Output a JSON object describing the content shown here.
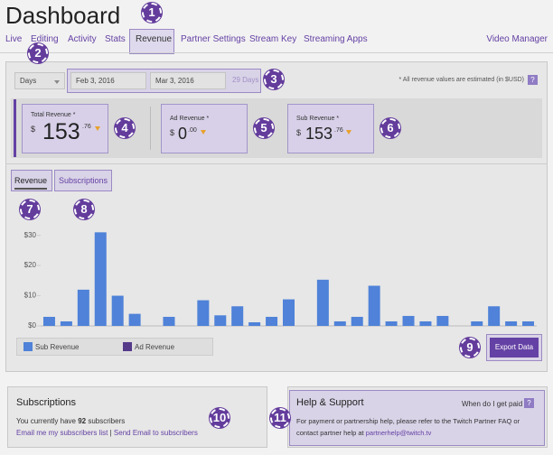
{
  "header": {
    "title": "Dashboard"
  },
  "nav": {
    "tabs": [
      "Live",
      "Editing",
      "Activity",
      "Stats",
      "Revenue",
      "Partner Settings",
      "Stream Key",
      "Streaming Apps"
    ],
    "right": "Video Manager"
  },
  "filters": {
    "period": "Days",
    "start": "Feb 3, 2016",
    "end": "Mar 3, 2016",
    "span": "29 Days",
    "note": "* All revenue values are estimated (in $USD)",
    "help": "?"
  },
  "cards": [
    {
      "label": "Total Revenue *",
      "currency": "$",
      "whole": "153",
      "cents": ".76"
    },
    {
      "label": "Ad Revenue *",
      "currency": "$",
      "whole": "0",
      "cents": ".00"
    },
    {
      "label": "Sub Revenue *",
      "currency": "$",
      "whole": "153",
      "cents": ".76"
    }
  ],
  "chart_tabs": [
    "Revenue",
    "Subscriptions"
  ],
  "chart_data": {
    "type": "bar",
    "stacked": true,
    "series": [
      {
        "name": "Sub Revenue",
        "color": "#4f82d8",
        "values": [
          3,
          1.5,
          12,
          31,
          10,
          4,
          0,
          3,
          0,
          8.5,
          3.5,
          6.5,
          1.2,
          3,
          8.8,
          0,
          15.3,
          1.5,
          3,
          13.3,
          1.5,
          3.3,
          1.5,
          3.3,
          0,
          1.5,
          6.5,
          1.5,
          1.5
        ]
      },
      {
        "name": "Ad Revenue",
        "color": "#553a8a",
        "values": [
          0,
          0,
          0,
          0,
          0,
          0,
          0,
          0,
          0,
          0,
          0,
          0,
          0,
          0,
          0,
          0,
          0,
          0,
          0,
          0,
          0,
          0,
          0,
          0,
          0,
          0,
          0,
          0,
          0
        ]
      }
    ],
    "ylim": [
      0,
      32
    ],
    "yticks": [
      {
        "value": 0,
        "label": "$0"
      },
      {
        "value": 10,
        "label": "$10"
      },
      {
        "value": 20,
        "label": "$20"
      },
      {
        "value": 30,
        "label": "$30"
      }
    ],
    "grid": false
  },
  "export": "Export Data",
  "subscriptions": {
    "title": "Subscriptions",
    "text_before": "You currently have",
    "count": 92,
    "text_after": "subscribers",
    "link1": "Email me my subscribers list",
    "separator": "|",
    "link2": "Send Email to subscribers"
  },
  "help": {
    "title": "Help & Support",
    "link": "When do I get paid",
    "icon": "?",
    "line1": "For payment or partnership help, please refer to the Twitch Partner FAQ or",
    "line2_before": "contact partner help at",
    "email": "partnerhelp@twitch.tv"
  },
  "annotations": [
    1,
    2,
    3,
    4,
    5,
    6,
    7,
    8,
    9,
    10,
    11
  ]
}
